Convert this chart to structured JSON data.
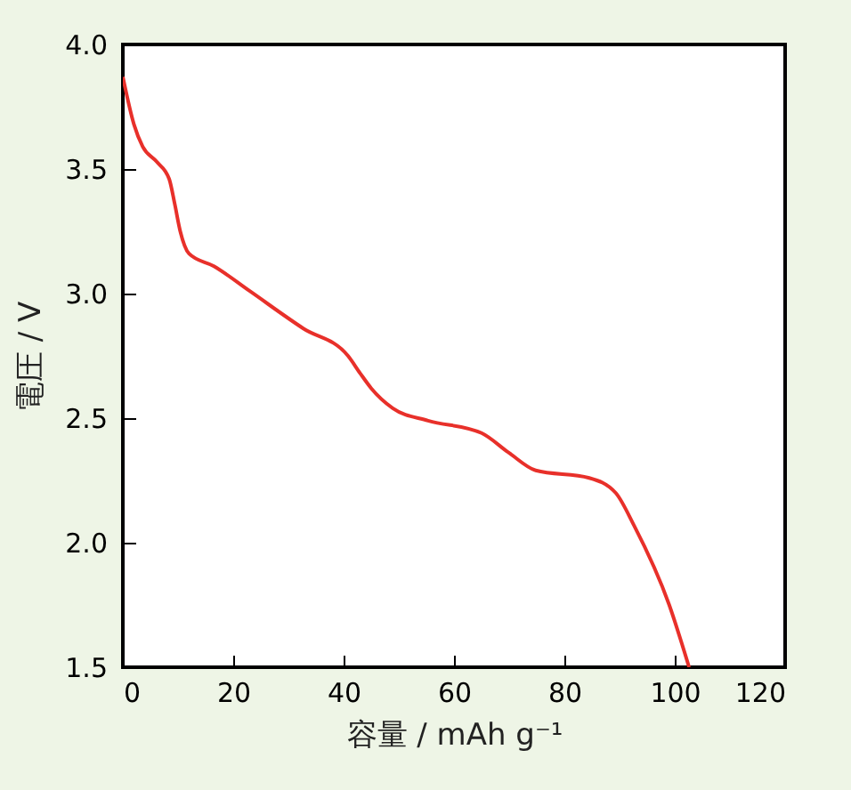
{
  "chart_data": {
    "type": "line",
    "xlabel": "容量 / mAh g⁻¹",
    "ylabel": "電圧 / V",
    "x": [
      0,
      2,
      3.6,
      6.1,
      8.4,
      9.4,
      10.4,
      12,
      16.5,
      23,
      32.7,
      40.8,
      43,
      45,
      48.9,
      55.3,
      65,
      70,
      74.8,
      84.5,
      89.3,
      92.6,
      99,
      102.6
    ],
    "series": [
      {
        "color": "#e8302a",
        "values": [
          3.87,
          3.68,
          3.59,
          3.53,
          3.46,
          3.36,
          3.25,
          3.16,
          3.11,
          3.01,
          2.86,
          2.75,
          2.68,
          2.62,
          2.54,
          2.49,
          2.44,
          2.36,
          2.29,
          2.26,
          2.2,
          2.07,
          1.75,
          1.5
        ]
      }
    ],
    "xlim": [
      0,
      120
    ],
    "xticks": [
      0,
      20,
      40,
      60,
      80,
      100,
      120
    ],
    "ylim": [
      1.5,
      4.0
    ],
    "yticks": [
      {
        "value": 1.5,
        "label": "1.5"
      },
      {
        "value": 2.0,
        "label": "2.0"
      },
      {
        "value": 2.5,
        "label": "2.5"
      },
      {
        "value": 3.0,
        "label": "3.0"
      },
      {
        "value": 3.5,
        "label": "3.5"
      },
      {
        "value": 4.0,
        "label": "4.0"
      }
    ],
    "grid": false
  }
}
